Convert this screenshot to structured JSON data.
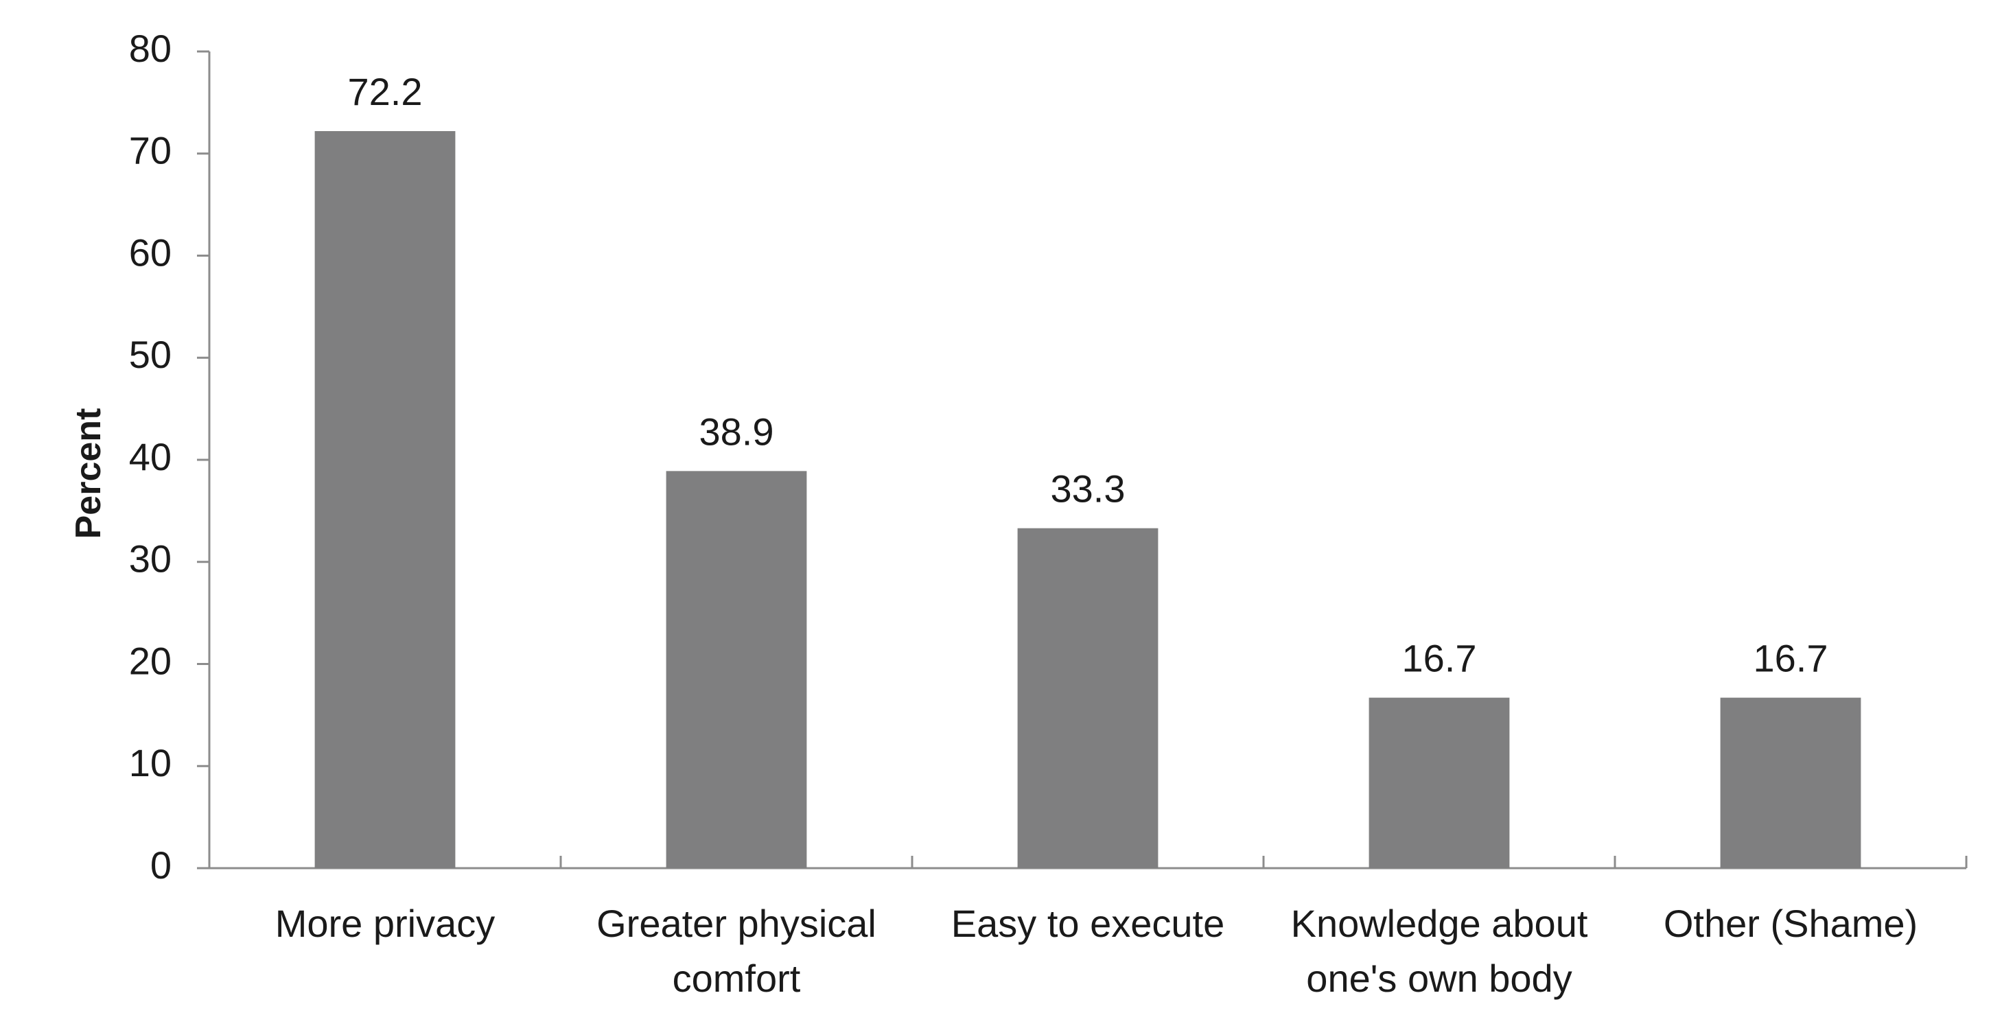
{
  "chart_data": {
    "type": "bar",
    "categories": [
      [
        "More privacy"
      ],
      [
        "Greater physical",
        "comfort"
      ],
      [
        "Easy to execute"
      ],
      [
        "Knowledge about",
        "one's own body"
      ],
      [
        "Other (Shame)"
      ]
    ],
    "values": [
      72.2,
      38.9,
      33.3,
      16.7,
      16.7
    ],
    "data_labels": [
      "72.2",
      "38.9",
      "33.3",
      "16.7",
      "16.7"
    ],
    "title": "",
    "xlabel": "",
    "ylabel": "Percent",
    "ylim": [
      0,
      80
    ],
    "yticks": [
      0,
      10,
      20,
      30,
      40,
      50,
      60,
      70,
      80
    ],
    "grid": false,
    "legend": "none",
    "bar_color": "#7f7f80"
  }
}
